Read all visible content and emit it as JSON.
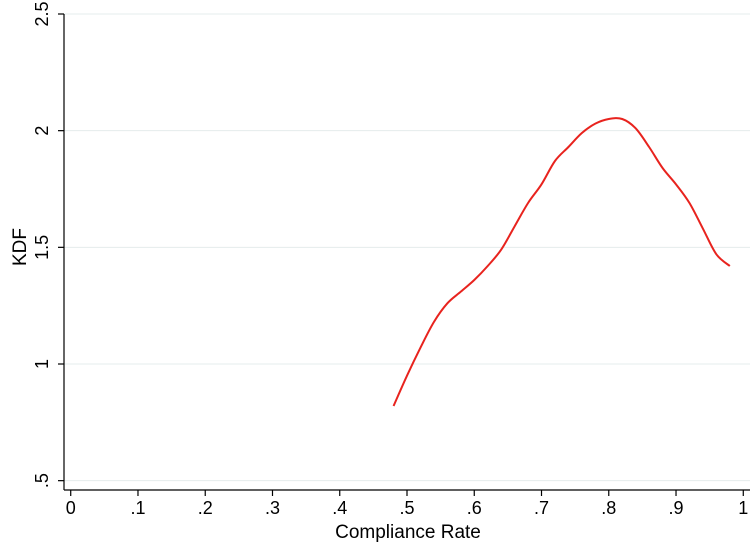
{
  "chart_data": {
    "type": "line",
    "title": "",
    "xlabel": "Compliance Rate",
    "ylabel": "KDF",
    "xlim": [
      -0.01,
      1.01
    ],
    "ylim": [
      0.46,
      2.5
    ],
    "grid": true,
    "x_ticks": [
      0,
      0.1,
      0.2,
      0.3,
      0.4,
      0.5,
      0.6,
      0.7,
      0.8,
      0.9,
      1
    ],
    "x_tick_labels": [
      "0",
      ".1",
      ".2",
      ".3",
      ".4",
      ".5",
      ".6",
      ".7",
      ".8",
      ".9",
      "1"
    ],
    "y_ticks": [
      0.5,
      1,
      1.5,
      2,
      2.5
    ],
    "y_tick_labels": [
      ".5",
      "1",
      "1.5",
      "2",
      "2.5"
    ],
    "line_color": "#e8231e",
    "grid_color": "#e4ecec",
    "series": [
      {
        "x": [
          0.48,
          0.5,
          0.52,
          0.54,
          0.56,
          0.58,
          0.6,
          0.62,
          0.64,
          0.66,
          0.68,
          0.7,
          0.72,
          0.74,
          0.76,
          0.78,
          0.8,
          0.82,
          0.84,
          0.86,
          0.88,
          0.9,
          0.92,
          0.94,
          0.96,
          0.98
        ],
        "y": [
          0.82,
          0.95,
          1.07,
          1.18,
          1.26,
          1.31,
          1.36,
          1.42,
          1.49,
          1.59,
          1.69,
          1.77,
          1.87,
          1.93,
          1.99,
          2.03,
          2.05,
          2.05,
          2.01,
          1.93,
          1.84,
          1.77,
          1.69,
          1.58,
          1.47,
          1.42
        ]
      }
    ]
  }
}
